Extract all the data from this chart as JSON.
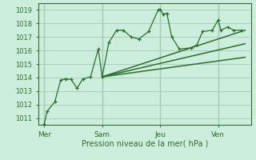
{
  "bg_color": "#cceedd",
  "grid_color": "#aaccbb",
  "line_color": "#2d6e2d",
  "xlabel": "Pression niveau de la mer( hPa )",
  "ylim": [
    1010.5,
    1019.5
  ],
  "yticks": [
    1011,
    1012,
    1013,
    1014,
    1015,
    1016,
    1017,
    1018,
    1019
  ],
  "day_labels": [
    "Mer",
    "Sam",
    "Jeu",
    "Ven"
  ],
  "day_positions": [
    0,
    3,
    6,
    9
  ],
  "xlim": [
    -0.3,
    10.7
  ],
  "series1_x": [
    0.0,
    0.15,
    0.55,
    0.85,
    1.1,
    1.4,
    1.7,
    2.0,
    2.4,
    2.8,
    3.0,
    3.35,
    3.75,
    4.1,
    4.5,
    4.9,
    5.4,
    5.9,
    6.0,
    6.15,
    6.35,
    6.6,
    7.0,
    7.6,
    7.9,
    8.2,
    8.7,
    9.0,
    9.15,
    9.5,
    9.8,
    10.2
  ],
  "series1_y": [
    1010.55,
    1011.5,
    1012.2,
    1013.8,
    1013.9,
    1013.85,
    1013.2,
    1013.9,
    1014.05,
    1016.1,
    1014.05,
    1016.6,
    1017.5,
    1017.5,
    1017.0,
    1016.85,
    1017.4,
    1019.0,
    1019.05,
    1018.7,
    1018.75,
    1017.0,
    1016.1,
    1016.2,
    1016.4,
    1017.4,
    1017.5,
    1018.25,
    1017.5,
    1017.75,
    1017.5,
    1017.5
  ],
  "trend1_x": [
    3.0,
    10.4
  ],
  "trend1_y": [
    1014.05,
    1017.5
  ],
  "trend2_x": [
    3.0,
    10.4
  ],
  "trend2_y": [
    1014.05,
    1016.5
  ],
  "trend3_x": [
    3.0,
    10.4
  ],
  "trend3_y": [
    1014.05,
    1015.5
  ]
}
